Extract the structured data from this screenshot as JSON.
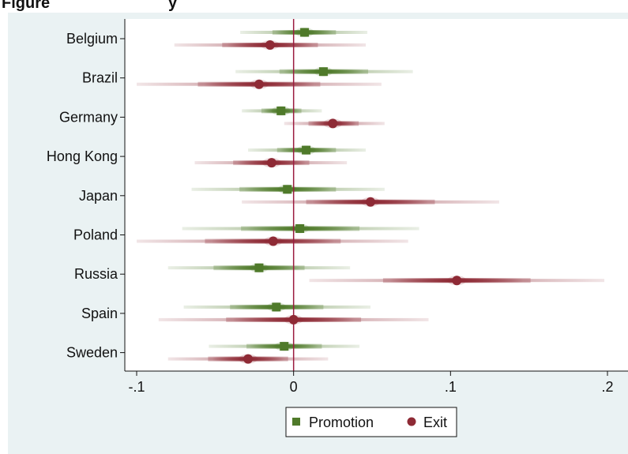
{
  "header": {
    "figure_label": "Figure",
    "subtitle_fragment": "y"
  },
  "chart_data": {
    "type": "scatter",
    "subtype": "coefficient plot with graded confidence intervals",
    "title": "",
    "xlabel": "",
    "ylabel": "",
    "xlim": [
      -0.1,
      0.2
    ],
    "x_ticks": [
      -0.1,
      0,
      0.1,
      0.2
    ],
    "x_tick_labels": [
      "-.1",
      "0",
      ".1",
      ".2"
    ],
    "reference_line_x": 0,
    "grid": false,
    "legend_position": "bottom-center",
    "categories": [
      "Belgium",
      "Brazil",
      "Germany",
      "Hong Kong",
      "Japan",
      "Poland",
      "Russia",
      "Spain",
      "Sweden"
    ],
    "series": [
      {
        "name": "Promotion",
        "marker": "square",
        "color": "#4f7a2a",
        "values": [
          0.007,
          0.019,
          -0.008,
          0.008,
          -0.004,
          0.004,
          -0.022,
          -0.011,
          -0.006
        ],
        "ci_low": [
          -0.034,
          -0.037,
          -0.033,
          -0.029,
          -0.065,
          -0.071,
          -0.08,
          -0.07,
          -0.054
        ],
        "ci_high": [
          0.047,
          0.076,
          0.018,
          0.046,
          0.058,
          0.08,
          0.036,
          0.049,
          0.042
        ]
      },
      {
        "name": "Exit",
        "marker": "circle",
        "color": "#8e2a35",
        "values": [
          -0.015,
          -0.022,
          0.025,
          -0.014,
          0.049,
          -0.013,
          0.104,
          0.0,
          -0.029
        ],
        "ci_low": [
          -0.076,
          -0.1,
          -0.006,
          -0.063,
          -0.033,
          -0.1,
          0.01,
          -0.086,
          -0.08
        ],
        "ci_high": [
          0.046,
          0.056,
          0.058,
          0.034,
          0.131,
          0.073,
          0.198,
          0.086,
          0.022
        ]
      }
    ]
  }
}
